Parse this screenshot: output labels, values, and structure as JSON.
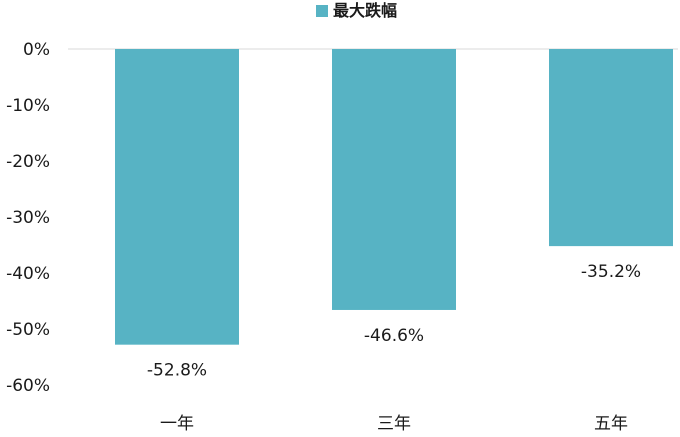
{
  "chart_data": {
    "type": "bar",
    "categories": [
      "一年",
      "三年",
      "五年"
    ],
    "series": [
      {
        "name": "最大跌幅",
        "values": [
          -52.8,
          -46.6,
          -35.2
        ],
        "color": "#57b3c4"
      }
    ],
    "data_labels": [
      "-52.8%",
      "-46.6%",
      "-35.2%"
    ],
    "y_ticks": [
      "0%",
      "-10%",
      "-20%",
      "-30%",
      "-40%",
      "-50%",
      "-60%"
    ],
    "ylim": [
      -60,
      0
    ],
    "grid": false,
    "legend_position": "top-center"
  }
}
